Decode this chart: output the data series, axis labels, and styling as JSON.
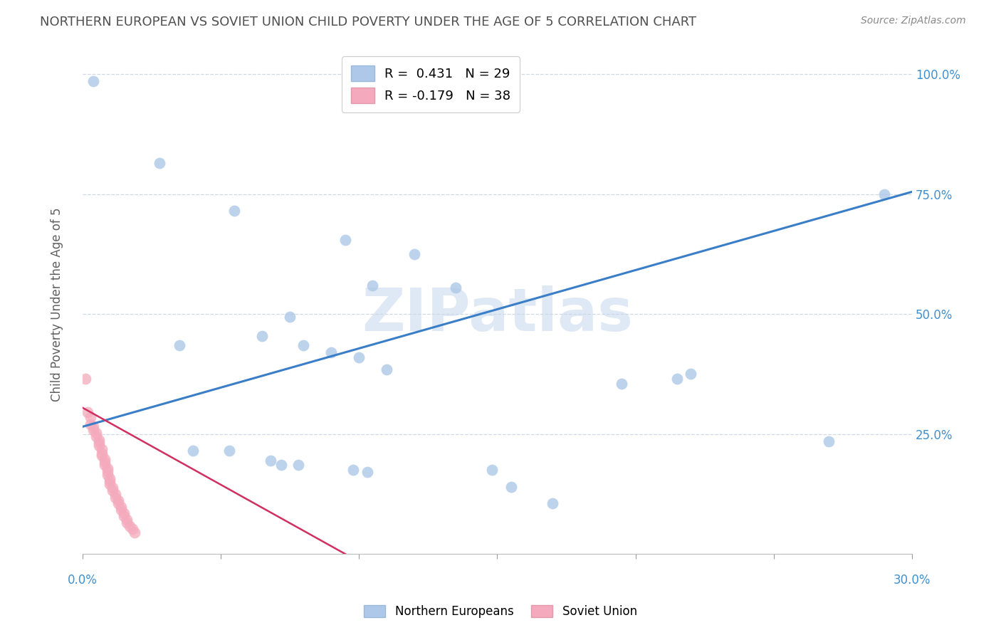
{
  "title": "NORTHERN EUROPEAN VS SOVIET UNION CHILD POVERTY UNDER THE AGE OF 5 CORRELATION CHART",
  "source": "Source: ZipAtlas.com",
  "ylabel": "Child Poverty Under the Age of 5",
  "xlim": [
    0.0,
    0.3
  ],
  "ylim": [
    0.0,
    1.04
  ],
  "xticks": [
    0.0,
    0.05,
    0.1,
    0.15,
    0.2,
    0.25,
    0.3
  ],
  "yticks": [
    0.0,
    0.25,
    0.5,
    0.75,
    1.0
  ],
  "yticklabels_right": [
    "",
    "25.0%",
    "50.0%",
    "75.0%",
    "100.0%"
  ],
  "blue_R": 0.431,
  "blue_N": 29,
  "pink_R": -0.179,
  "pink_N": 38,
  "blue_color": "#adc8e8",
  "pink_color": "#f4aabc",
  "blue_line_color": "#3a7ec8",
  "pink_line_color": "#d03060",
  "blue_scatter": [
    [
      0.004,
      0.985
    ],
    [
      0.028,
      0.815
    ],
    [
      0.055,
      0.715
    ],
    [
      0.095,
      0.655
    ],
    [
      0.12,
      0.625
    ],
    [
      0.105,
      0.56
    ],
    [
      0.135,
      0.555
    ],
    [
      0.075,
      0.495
    ],
    [
      0.09,
      0.42
    ],
    [
      0.1,
      0.41
    ],
    [
      0.11,
      0.385
    ],
    [
      0.065,
      0.455
    ],
    [
      0.08,
      0.435
    ],
    [
      0.035,
      0.435
    ],
    [
      0.04,
      0.215
    ],
    [
      0.053,
      0.215
    ],
    [
      0.068,
      0.195
    ],
    [
      0.072,
      0.185
    ],
    [
      0.078,
      0.185
    ],
    [
      0.098,
      0.175
    ],
    [
      0.103,
      0.17
    ],
    [
      0.148,
      0.175
    ],
    [
      0.155,
      0.14
    ],
    [
      0.17,
      0.105
    ],
    [
      0.195,
      0.355
    ],
    [
      0.215,
      0.365
    ],
    [
      0.22,
      0.375
    ],
    [
      0.27,
      0.235
    ],
    [
      0.29,
      0.75
    ]
  ],
  "pink_scatter": [
    [
      0.001,
      0.365
    ],
    [
      0.002,
      0.295
    ],
    [
      0.003,
      0.285
    ],
    [
      0.003,
      0.27
    ],
    [
      0.004,
      0.265
    ],
    [
      0.004,
      0.258
    ],
    [
      0.005,
      0.252
    ],
    [
      0.005,
      0.245
    ],
    [
      0.006,
      0.238
    ],
    [
      0.006,
      0.232
    ],
    [
      0.006,
      0.225
    ],
    [
      0.007,
      0.218
    ],
    [
      0.007,
      0.21
    ],
    [
      0.007,
      0.205
    ],
    [
      0.008,
      0.198
    ],
    [
      0.008,
      0.192
    ],
    [
      0.008,
      0.185
    ],
    [
      0.009,
      0.178
    ],
    [
      0.009,
      0.172
    ],
    [
      0.009,
      0.165
    ],
    [
      0.01,
      0.158
    ],
    [
      0.01,
      0.152
    ],
    [
      0.01,
      0.145
    ],
    [
      0.011,
      0.138
    ],
    [
      0.011,
      0.132
    ],
    [
      0.012,
      0.125
    ],
    [
      0.012,
      0.118
    ],
    [
      0.013,
      0.112
    ],
    [
      0.013,
      0.105
    ],
    [
      0.014,
      0.098
    ],
    [
      0.014,
      0.092
    ],
    [
      0.015,
      0.085
    ],
    [
      0.015,
      0.078
    ],
    [
      0.016,
      0.072
    ],
    [
      0.016,
      0.065
    ],
    [
      0.017,
      0.058
    ],
    [
      0.018,
      0.052
    ],
    [
      0.019,
      0.045
    ]
  ],
  "blue_line_x": [
    0.0,
    0.3
  ],
  "blue_line_y": [
    0.265,
    0.755
  ],
  "pink_line_x": [
    0.0,
    0.095
  ],
  "pink_line_y": [
    0.305,
    0.0
  ],
  "watermark": "ZIPatlas",
  "background_color": "#ffffff",
  "grid_color": "#d0d8e4",
  "tick_color": "#4090d0",
  "title_color": "#505050",
  "marker_size": 130
}
